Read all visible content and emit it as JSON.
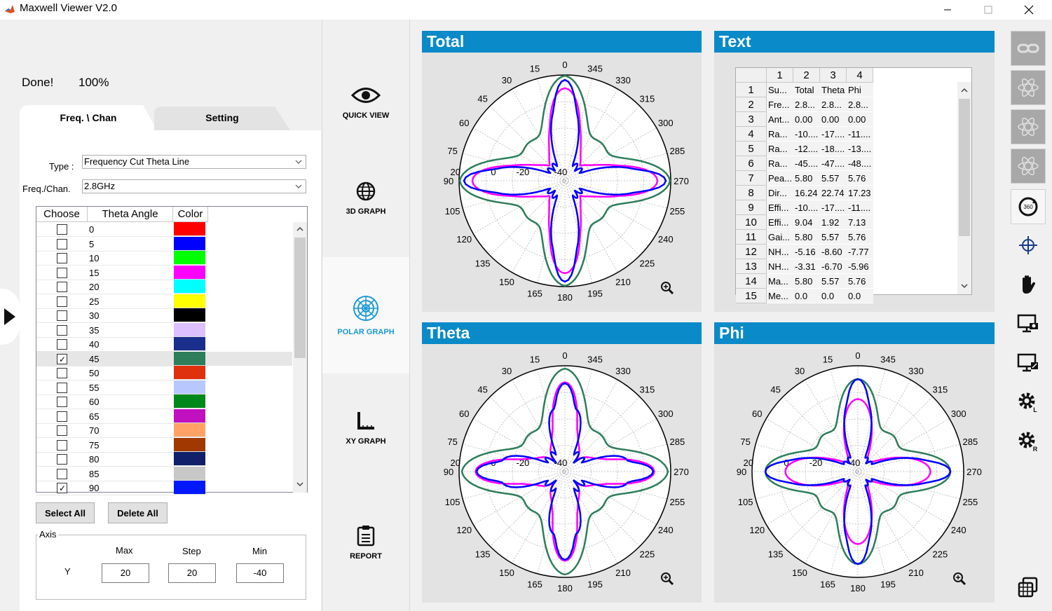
{
  "window": {
    "title": "Maxwell Viewer V2.0"
  },
  "status": {
    "message": "Done!",
    "percent": "100%",
    "progress": 1.0
  },
  "tabs": [
    {
      "label": "Freq. \\ Chan",
      "active": true
    },
    {
      "label": "Setting",
      "active": false
    }
  ],
  "fields": {
    "type_label": "Type :",
    "type_value": "Frequency Cut Theta Line",
    "freq_label": "Freq./Chan.",
    "freq_value": "2.8GHz"
  },
  "list": {
    "headers": [
      "Choose",
      "Theta Angle",
      "Color"
    ],
    "rows": [
      {
        "angle": "0",
        "checked": false,
        "color": "#ff0000"
      },
      {
        "angle": "5",
        "checked": false,
        "color": "#0000ff"
      },
      {
        "angle": "10",
        "checked": false,
        "color": "#00ff00"
      },
      {
        "angle": "15",
        "checked": false,
        "color": "#ff00ff"
      },
      {
        "angle": "20",
        "checked": false,
        "color": "#00ffff"
      },
      {
        "angle": "25",
        "checked": false,
        "color": "#ffff00"
      },
      {
        "angle": "30",
        "checked": false,
        "color": "#000000"
      },
      {
        "angle": "35",
        "checked": false,
        "color": "#dcc0ff"
      },
      {
        "angle": "40",
        "checked": false,
        "color": "#1a2f8c"
      },
      {
        "angle": "45",
        "checked": true,
        "color": "#2e7d5b"
      },
      {
        "angle": "50",
        "checked": false,
        "color": "#e0310f"
      },
      {
        "angle": "55",
        "checked": false,
        "color": "#b8c8ff"
      },
      {
        "angle": "60",
        "checked": false,
        "color": "#00881a"
      },
      {
        "angle": "65",
        "checked": false,
        "color": "#c010c0"
      },
      {
        "angle": "70",
        "checked": false,
        "color": "#ffa266"
      },
      {
        "angle": "75",
        "checked": false,
        "color": "#a03800"
      },
      {
        "angle": "80",
        "checked": false,
        "color": "#10206a"
      },
      {
        "angle": "85",
        "checked": false,
        "color": "#c8c8c8"
      },
      {
        "angle": "90",
        "checked": true,
        "color": "#0018ff"
      }
    ]
  },
  "buttons": {
    "select_all": "Select All",
    "delete_all": "Delete All"
  },
  "axis": {
    "title": "Axis",
    "row_label": "Y",
    "max_label": "Max",
    "step_label": "Step",
    "min_label": "Min",
    "max": "20",
    "step": "20",
    "min": "-40"
  },
  "nav": [
    {
      "label": "QUICK VIEW",
      "icon": "eye-icon",
      "active": false
    },
    {
      "label": "3D GRAPH",
      "icon": "globe-icon",
      "active": false
    },
    {
      "label": "POLAR GRAPH",
      "icon": "polar-icon",
      "active": true
    },
    {
      "label": "XY GRAPH",
      "icon": "xy-axis-icon",
      "active": false
    },
    {
      "label": "REPORT",
      "icon": "clipboard-icon",
      "active": false
    }
  ],
  "panels": {
    "total": "Total",
    "text": "Text",
    "theta": "Theta",
    "phi": "Phi"
  },
  "polar_common": {
    "angle_labels": [
      "0",
      "15",
      "30",
      "45",
      "60",
      "75",
      "90",
      "105",
      "120",
      "135",
      "150",
      "165",
      "180",
      "195",
      "210",
      "225",
      "240",
      "255",
      "270",
      "285",
      "300",
      "315",
      "330",
      "345"
    ],
    "radial_labels": [
      "20",
      "0",
      "-20",
      "-40"
    ],
    "rlim": [
      -40,
      20
    ],
    "colors": {
      "magenta": "#ff00ff",
      "blue": "#0000ff",
      "green": "#2e7d5b"
    }
  },
  "text_table": {
    "col_headers": [
      "1",
      "2",
      "3",
      "4"
    ],
    "row_headers": [
      "1",
      "2",
      "3",
      "4",
      "5",
      "6",
      "7",
      "8",
      "9",
      "10",
      "11",
      "12",
      "13",
      "14",
      "15"
    ],
    "rows": [
      [
        "Su...",
        "Total",
        "Theta",
        "Phi"
      ],
      [
        "Fre...",
        "2.8...",
        "2.8...",
        "2.8..."
      ],
      [
        "Ant...",
        "0.00",
        "0.00",
        "0.00"
      ],
      [
        "Ra...",
        "-10....",
        "-17....",
        "-11...."
      ],
      [
        "Ra...",
        "-12....",
        "-18....",
        "-13...."
      ],
      [
        "Ra...",
        "-45....",
        "-47....",
        "-48...."
      ],
      [
        "Pea...",
        "5.80",
        "5.57",
        "5.76"
      ],
      [
        "Dir...",
        "16.24",
        "22.74",
        "17.23"
      ],
      [
        "Effi...",
        "-10....",
        "-17....",
        "-11...."
      ],
      [
        "Effi...",
        "9.04",
        "1.92",
        "7.13"
      ],
      [
        "Gai...",
        "5.80",
        "5.57",
        "5.76"
      ],
      [
        "NH...",
        "-5.16",
        "-8.60",
        "-7.77"
      ],
      [
        "NH...",
        "-3.31",
        "-6.70",
        "-5.96"
      ],
      [
        "Ma...",
        "5.80",
        "5.57",
        "5.76"
      ],
      [
        "Me...",
        "0.0",
        "0.0",
        "0.0"
      ]
    ]
  },
  "tools": [
    {
      "icon": "link-icon",
      "state": "disabled"
    },
    {
      "icon": "atom-xy-icon",
      "state": "disabled"
    },
    {
      "icon": "atom-yz-icon",
      "state": "disabled"
    },
    {
      "icon": "atom-xz-icon",
      "state": "disabled"
    },
    {
      "icon": "rotate-360-icon",
      "state": "boxed"
    },
    {
      "icon": "crosshair-icon",
      "state": "normal"
    },
    {
      "icon": "hand-icon",
      "state": "normal"
    },
    {
      "icon": "screen-capture-icon",
      "state": "normal"
    },
    {
      "icon": "screen-export-icon",
      "state": "normal"
    },
    {
      "icon": "settings-l-icon",
      "state": "normal"
    },
    {
      "icon": "settings-r-icon",
      "state": "normal"
    },
    {
      "icon": "copy-windows-icon",
      "state": "normal"
    }
  ]
}
